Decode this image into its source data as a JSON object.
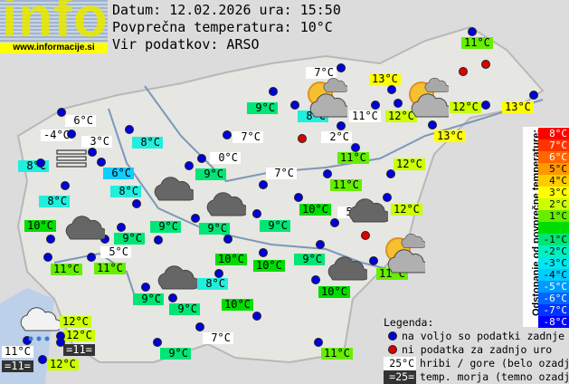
{
  "header": {
    "logo_text": "info",
    "logo_url": "www.informacije.si",
    "date_line": "Datum: 12.02.2026 ura: 15:50",
    "avg_line": "Povprečna temperatura: 10°C",
    "source_line": "Vir podatkov: ARSO"
  },
  "colors": {
    "station_ok": "#0000dd",
    "station_missing": "#dd0000",
    "mountain_bg": "#ffffff",
    "sea_bg": "#333333"
  },
  "stations": [
    {
      "t": "11°C",
      "bg": "#66ee00"
    },
    {
      "t": "7°C",
      "bg": "#ffffff"
    },
    {
      "t": "13°C",
      "bg": "#ffff00"
    },
    {
      "t": "9°C",
      "bg": "#00e676"
    },
    {
      "t": "8°C",
      "bg": "#22eedd"
    },
    {
      "t": "11°C",
      "bg": "#ffffff"
    },
    {
      "t": "12°C",
      "bg": "#ccff00"
    },
    {
      "t": "12°C",
      "bg": "#ccff00"
    },
    {
      "t": "13°C",
      "bg": "#ffff00"
    },
    {
      "t": "13°C",
      "bg": "#ffff00"
    },
    {
      "t": "2°C",
      "bg": "#ffffff"
    },
    {
      "t": "7°C",
      "bg": "#ffffff"
    },
    {
      "t": "6°C",
      "bg": "#ffffff"
    },
    {
      "t": "-4°C",
      "bg": "#ffffff"
    },
    {
      "t": "3°C",
      "bg": "#ffffff"
    },
    {
      "t": "8°C",
      "bg": "#22eedd"
    },
    {
      "t": "8°C",
      "bg": "#22eedd"
    },
    {
      "t": "6°C",
      "bg": "#11ccff"
    },
    {
      "t": "8°C",
      "bg": "#22eedd"
    },
    {
      "t": "8°C",
      "bg": "#22eedd"
    },
    {
      "t": "0°C",
      "bg": "#ffffff"
    },
    {
      "t": "9°C",
      "bg": "#00e676"
    },
    {
      "t": "7°C",
      "bg": "#ffffff"
    },
    {
      "t": "11°C",
      "bg": "#66ee00"
    },
    {
      "t": "11°C",
      "bg": "#66ee00"
    },
    {
      "t": "12°C",
      "bg": "#ccff00"
    },
    {
      "t": "12°C",
      "bg": "#ccff00"
    },
    {
      "t": "10°C",
      "bg": "#00dd00"
    },
    {
      "t": "5°C",
      "bg": "#ffffff"
    },
    {
      "t": "10°C",
      "bg": "#00dd00"
    },
    {
      "t": "9°C",
      "bg": "#00e676"
    },
    {
      "t": "9°C",
      "bg": "#00e676"
    },
    {
      "t": "9°C",
      "bg": "#00e676"
    },
    {
      "t": "9°C",
      "bg": "#00e676"
    },
    {
      "t": "5°C",
      "bg": "#ffffff"
    },
    {
      "t": "11°C",
      "bg": "#66ee00"
    },
    {
      "t": "11°C",
      "bg": "#66ee00"
    },
    {
      "t": "10°C",
      "bg": "#00dd00"
    },
    {
      "t": "10°C",
      "bg": "#00dd00"
    },
    {
      "t": "9°C",
      "bg": "#00e676"
    },
    {
      "t": "11°C",
      "bg": "#66ee00"
    },
    {
      "t": "8°C",
      "bg": "#22eedd"
    },
    {
      "t": "10°C",
      "bg": "#00dd00"
    },
    {
      "t": "9°C",
      "bg": "#00e676"
    },
    {
      "t": "9°C",
      "bg": "#00e676"
    },
    {
      "t": "10°C",
      "bg": "#00dd00"
    },
    {
      "t": "12°C",
      "bg": "#ccff00"
    },
    {
      "t": "12°C",
      "bg": "#ccff00"
    },
    {
      "t": "=11=",
      "bg": "#333333"
    },
    {
      "t": "11°C",
      "bg": "#ffffff"
    },
    {
      "t": "=11=",
      "bg": "#333333"
    },
    {
      "t": "12°C",
      "bg": "#ccff00"
    },
    {
      "t": "7°C",
      "bg": "#ffffff"
    },
    {
      "t": "9°C",
      "bg": "#00e676"
    },
    {
      "t": "11°C",
      "bg": "#66ee00"
    }
  ],
  "weather_icons": [
    "partly-sunny-icon",
    "partly-sunny-icon",
    "partly-sunny-icon",
    "cloud-icon",
    "cloud-icon",
    "cloud-icon",
    "cloud-icon",
    "cloud-icon",
    "cloud-icon",
    "rain-icon",
    "fog-icon"
  ],
  "scale": {
    "title": "Odstopanje od povprečne temperature:",
    "rows": [
      {
        "t": "8°C",
        "c": "#ff0000",
        "fg": "#ffffff"
      },
      {
        "t": "7°C",
        "c": "#ff3300",
        "fg": "#ffffff"
      },
      {
        "t": "6°C",
        "c": "#ff6600",
        "fg": "#ffffff"
      },
      {
        "t": "5°C",
        "c": "#ff9900",
        "fg": "#000000"
      },
      {
        "t": "4°C",
        "c": "#ffcc00",
        "fg": "#000000"
      },
      {
        "t": "3°C",
        "c": "#ffff00",
        "fg": "#000000"
      },
      {
        "t": "2°C",
        "c": "#ccff00",
        "fg": "#000000"
      },
      {
        "t": "1°C",
        "c": "#66ee00",
        "fg": "#000000"
      },
      {
        "t": "",
        "c": "#00dd00",
        "fg": "#000000"
      },
      {
        "t": "-1°C",
        "c": "#00e676",
        "fg": "#000000"
      },
      {
        "t": "-2°C",
        "c": "#00f0c0",
        "fg": "#000000"
      },
      {
        "t": "-3°C",
        "c": "#00e8ee",
        "fg": "#000000"
      },
      {
        "t": "-4°C",
        "c": "#00ccff",
        "fg": "#000000"
      },
      {
        "t": "-5°C",
        "c": "#0099ff",
        "fg": "#ffffff"
      },
      {
        "t": "-6°C",
        "c": "#0066ff",
        "fg": "#ffffff"
      },
      {
        "t": "-7°C",
        "c": "#0033ff",
        "fg": "#ffffff"
      },
      {
        "t": "-8°C",
        "c": "#0000ff",
        "fg": "#ffffff"
      }
    ]
  },
  "legend": {
    "title": "Legenda:",
    "ok": "na voljo so podatki zadnje ure",
    "missing": "ni podatka za zadnjo uro",
    "mountain_sample": "25°C",
    "mountain": "hribi / gore (belo ozadje)",
    "sea_sample": "=25=",
    "sea": "temp. morja (temno ozadje)"
  }
}
